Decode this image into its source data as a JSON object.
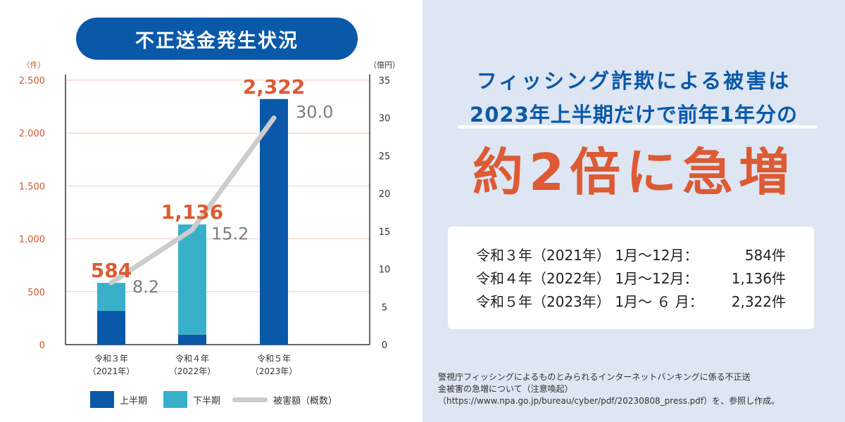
{
  "chart_title": "不正送金発生状況",
  "chart_data": {
    "type": "bar",
    "stacked": true,
    "categories": [
      {
        "line1": "令和３年",
        "line2": "（2021年）"
      },
      {
        "line1": "令和４年",
        "line2": "（2022年）"
      },
      {
        "line1": "令和５年",
        "line2": "（2023年）"
      }
    ],
    "series": [
      {
        "name": "上半期",
        "color": "#0a59a9",
        "values": [
          320,
          95,
          2322
        ]
      },
      {
        "name": "下半期",
        "color": "#39b0c9",
        "values": [
          264,
          1041,
          0
        ]
      }
    ],
    "totals": [
      584,
      1136,
      2322
    ],
    "total_labels": [
      "584",
      "1,136",
      "2,322"
    ],
    "total_label_color": "#dd5a34",
    "line_series": {
      "name": "被害額（概数）",
      "color": "#cccccc",
      "values": [
        8.2,
        15.2,
        30.0
      ],
      "labels": [
        "8.2",
        "15.2",
        "30.0"
      ]
    },
    "left_axis": {
      "unit": "（件）",
      "ylim": [
        0,
        2500
      ],
      "ticks": [
        0,
        500,
        1000,
        1500,
        2000,
        2500
      ],
      "tick_labels": [
        "0",
        "500",
        "1.000",
        "1.500",
        "2.000",
        "2.500"
      ],
      "tick_color": "#d2572f"
    },
    "right_axis": {
      "unit": "（億円）",
      "ylim": [
        0,
        35
      ],
      "ticks": [
        0,
        5,
        10,
        15,
        20,
        25,
        30,
        35
      ],
      "tick_labels": [
        "0",
        "5",
        "10",
        "15",
        "20",
        "25",
        "30",
        "35"
      ]
    },
    "grid": true
  },
  "legend": [
    {
      "label": "上半期",
      "color": "#0a59a9"
    },
    {
      "label": "下半期",
      "color": "#39b0c9"
    },
    {
      "label": "被害額（概数）",
      "color": "#cccccc"
    }
  ],
  "headline": {
    "line1": "フィッシング詐欺による被害は",
    "line2": "2023年上半期だけで前年1年分の",
    "big": "約2倍に急増"
  },
  "stats": [
    {
      "era": "令和３年（2021年） 1月〜12月：",
      "count": "584件"
    },
    {
      "era": "令和４年（2022年） 1月〜12月：",
      "count": "1,136件"
    },
    {
      "era": "令和５年（2023年） 1月〜 ６ 月：",
      "count": "2,322件"
    }
  ],
  "footnote": {
    "line1": "警視庁フィッシングによるものとみられるインターネットバンキングに係る不正送",
    "line2": "金被害の急増について（注意喚起）",
    "line3": "（https://www.npa.go.jp/bureau/cyber/pdf/20230808_press.pdf）を、参照し作成。"
  }
}
